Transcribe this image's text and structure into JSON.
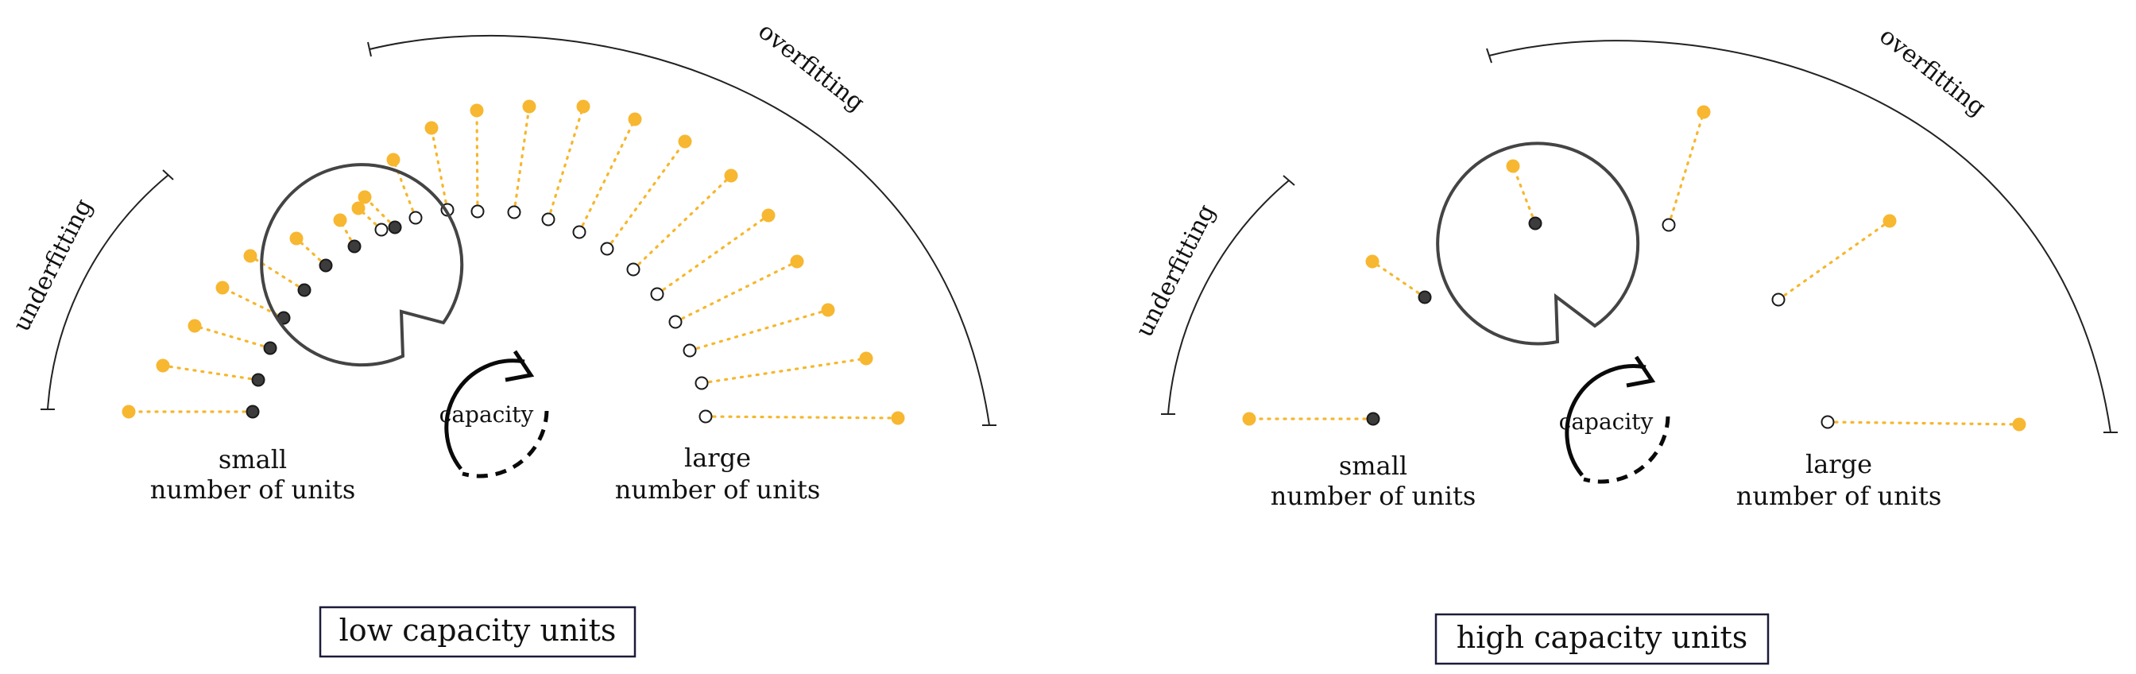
{
  "colors": {
    "unit_active": "#f7b731",
    "unit_dark": "#3c3c3c",
    "unit_open": "#ffffff",
    "box_border": "#1b1b3a"
  },
  "panels": [
    {
      "id": "low",
      "capacity_label": "capacity",
      "underfitting_label": "underfitting",
      "overfitting_label": "overfitting",
      "small_label_line1": "small",
      "small_label_line2": "number of units",
      "large_label_line1": "large",
      "large_label_line2": "number of units",
      "title": "low capacity units",
      "units": [
        {
          "state": "dark"
        },
        {
          "state": "dark"
        },
        {
          "state": "dark"
        },
        {
          "state": "dark"
        },
        {
          "state": "dark"
        },
        {
          "state": "dark"
        },
        {
          "state": "dark"
        },
        {
          "state": "dark"
        },
        {
          "state": "open"
        },
        {
          "state": "open"
        },
        {
          "state": "open"
        },
        {
          "state": "open"
        },
        {
          "state": "open"
        },
        {
          "state": "open"
        },
        {
          "state": "open"
        },
        {
          "state": "open"
        },
        {
          "state": "open"
        },
        {
          "state": "open"
        },
        {
          "state": "open"
        },
        {
          "state": "open"
        },
        {
          "state": "open"
        },
        {
          "state": "open"
        }
      ]
    },
    {
      "id": "high",
      "capacity_label": "capacity",
      "underfitting_label": "underfitting",
      "overfitting_label": "overfitting",
      "small_label_line1": "small",
      "small_label_line2": "number of units",
      "large_label_line1": "large",
      "large_label_line2": "number of units",
      "title": "high capacity units",
      "units": [
        {
          "state": "dark"
        },
        {
          "state": "dark"
        },
        {
          "state": "dark"
        },
        {
          "state": "open"
        },
        {
          "state": "open"
        },
        {
          "state": "open"
        }
      ]
    }
  ]
}
